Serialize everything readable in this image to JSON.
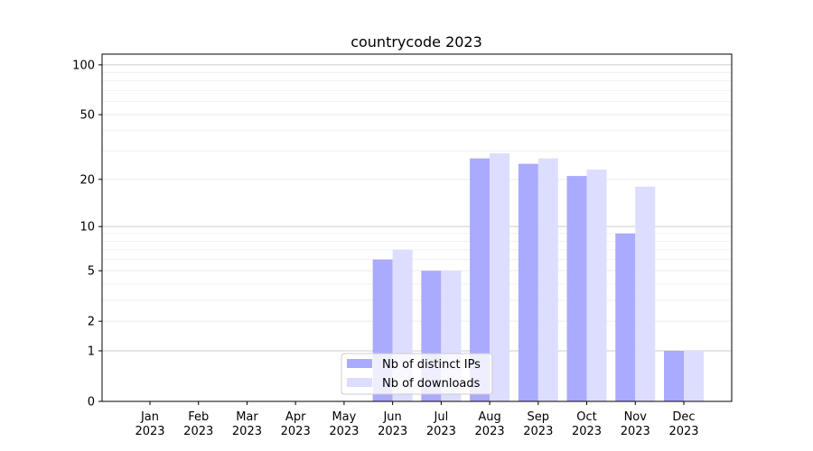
{
  "chart_data": {
    "type": "bar",
    "title": "countrycode 2023",
    "xlabel": "",
    "ylabel": "",
    "y_scale": "log(1+y)",
    "ylim": [
      0,
      116
    ],
    "yticks": [
      0,
      1,
      2,
      5,
      10,
      20,
      50,
      100
    ],
    "grid": true,
    "legend_placement": "bottom-center",
    "categories": [
      "Jan\n2023",
      "Feb\n2023",
      "Mar\n2023",
      "Apr\n2023",
      "May\n2023",
      "Jun\n2023",
      "Jul\n2023",
      "Aug\n2023",
      "Sep\n2023",
      "Oct\n2023",
      "Nov\n2023",
      "Dec\n2023"
    ],
    "series": [
      {
        "name": "Nb of distinct IPs",
        "color": "#aaaaff",
        "values": [
          0,
          0,
          0,
          0,
          0,
          6,
          5,
          27,
          25,
          21,
          9,
          1
        ]
      },
      {
        "name": "Nb of downloads",
        "color": "#ddddff",
        "values": [
          0,
          0,
          0,
          0,
          0,
          7,
          5,
          29,
          27,
          23,
          18,
          1
        ]
      }
    ]
  }
}
